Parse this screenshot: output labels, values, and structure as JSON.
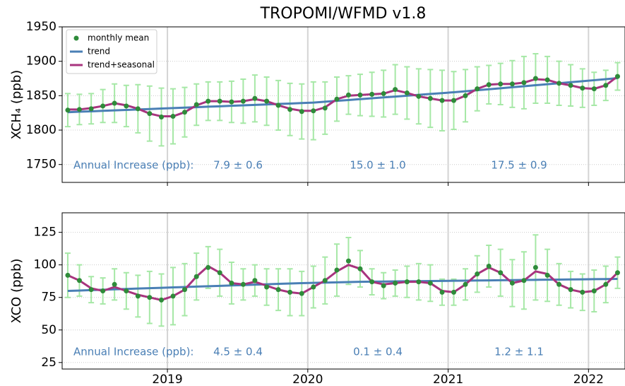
{
  "chart_data": [
    {
      "type": "errorbar-line",
      "title": "TROPOMI/WFMD v1.8",
      "ylabel": "XCH₄ (ppb)",
      "x": [
        2018.29,
        2018.373,
        2018.457,
        2018.54,
        2018.623,
        2018.707,
        2018.79,
        2018.873,
        2018.957,
        2019.04,
        2019.123,
        2019.207,
        2019.29,
        2019.373,
        2019.457,
        2019.54,
        2019.623,
        2019.707,
        2019.79,
        2019.873,
        2019.957,
        2020.04,
        2020.123,
        2020.207,
        2020.29,
        2020.373,
        2020.457,
        2020.54,
        2020.623,
        2020.707,
        2020.79,
        2020.873,
        2020.957,
        2021.04,
        2021.123,
        2021.207,
        2021.29,
        2021.373,
        2021.457,
        2021.54,
        2021.623,
        2021.707,
        2021.79,
        2021.873,
        2021.957,
        2022.04,
        2022.123,
        2022.207
      ],
      "series": [
        {
          "name": "monthly mean",
          "color": "#2e8b3a",
          "error_color": "#a6e8a6",
          "values": [
            1829,
            1830,
            1831,
            1835,
            1839,
            1835,
            1831,
            1824,
            1819,
            1820,
            1826,
            1837,
            1842,
            1842,
            1841,
            1842,
            1846,
            1842,
            1836,
            1830,
            1827,
            1828,
            1832,
            1845,
            1851,
            1851,
            1852,
            1853,
            1859,
            1854,
            1849,
            1846,
            1843,
            1843,
            1850,
            1860,
            1866,
            1867,
            1867,
            1869,
            1875,
            1873,
            1868,
            1865,
            1861,
            1860,
            1865,
            1878
          ],
          "errors": [
            24,
            22,
            22,
            24,
            28,
            30,
            35,
            40,
            42,
            40,
            36,
            30,
            28,
            28,
            30,
            32,
            34,
            35,
            36,
            38,
            40,
            42,
            38,
            32,
            28,
            30,
            32,
            34,
            36,
            38,
            40,
            42,
            44,
            42,
            38,
            32,
            28,
            30,
            34,
            38,
            36,
            34,
            32,
            30,
            28,
            24,
            22,
            20
          ]
        },
        {
          "name": "trend",
          "color": "#4a7fb5",
          "values": [
            1826,
            1826.7,
            1827.3,
            1828,
            1828.6,
            1829.3,
            1830,
            1830.6,
            1831.3,
            1832,
            1832.6,
            1833.3,
            1834,
            1834.6,
            1835.3,
            1836,
            1836.6,
            1837.3,
            1838,
            1838.6,
            1839.3,
            1840,
            1841.2,
            1842.5,
            1843.7,
            1845,
            1846.2,
            1847.5,
            1848.7,
            1850,
            1851.2,
            1852.5,
            1853.7,
            1855,
            1856.4,
            1857.9,
            1859.4,
            1860.8,
            1862.3,
            1863.7,
            1865.2,
            1866.7,
            1868.1,
            1869.6,
            1871,
            1872.5,
            1874,
            1875.5
          ]
        },
        {
          "name": "trend+seasonal",
          "color": "#a8347e",
          "values": [
            1830,
            1830,
            1832,
            1835,
            1839,
            1836,
            1831,
            1824,
            1820,
            1820,
            1826,
            1836,
            1842,
            1842,
            1841,
            1842,
            1845,
            1842,
            1836,
            1831,
            1828,
            1828,
            1833,
            1845,
            1850,
            1851,
            1852,
            1853,
            1858,
            1854,
            1849,
            1846,
            1843,
            1843,
            1850,
            1860,
            1866,
            1867,
            1867,
            1869,
            1874,
            1873,
            1868,
            1865,
            1861,
            1860,
            1865,
            1878
          ]
        }
      ],
      "annotations": [
        "Annual Increase (ppb):",
        "7.9 ± 0.6",
        "15.0 ± 1.0",
        "17.5 ± 0.9"
      ],
      "xlim": [
        2018.25,
        2022.26
      ],
      "xticks": [
        2019,
        2020,
        2021,
        2022
      ],
      "ylim": [
        1724,
        1950
      ],
      "yticks": [
        1750,
        1800,
        1850,
        1900,
        1950
      ],
      "grid": true,
      "legend": "upper left"
    },
    {
      "type": "errorbar-line",
      "ylabel": "XCO (ppb)",
      "x": [
        2018.29,
        2018.373,
        2018.457,
        2018.54,
        2018.623,
        2018.707,
        2018.79,
        2018.873,
        2018.957,
        2019.04,
        2019.123,
        2019.207,
        2019.29,
        2019.373,
        2019.457,
        2019.54,
        2019.623,
        2019.707,
        2019.79,
        2019.873,
        2019.957,
        2020.04,
        2020.123,
        2020.207,
        2020.29,
        2020.373,
        2020.457,
        2020.54,
        2020.623,
        2020.707,
        2020.79,
        2020.873,
        2020.957,
        2021.04,
        2021.123,
        2021.207,
        2021.29,
        2021.373,
        2021.457,
        2021.54,
        2021.623,
        2021.707,
        2021.79,
        2021.873,
        2021.957,
        2022.04,
        2022.123,
        2022.207
      ],
      "series": [
        {
          "color": "#2e8b3a",
          "error_color": "#a6e8a6",
          "values": [
            92,
            88,
            81,
            80,
            85,
            80,
            76,
            75,
            73,
            76,
            81,
            91,
            98,
            94,
            86,
            85,
            88,
            83,
            81,
            79,
            78,
            83,
            88,
            96,
            103,
            97,
            87,
            84,
            86,
            87,
            87,
            86,
            79,
            79,
            85,
            93,
            99,
            94,
            86,
            88,
            98,
            92,
            85,
            81,
            79,
            80,
            85,
            94
          ],
          "errors": [
            17,
            12,
            10,
            10,
            12,
            14,
            16,
            20,
            20,
            22,
            20,
            18,
            16,
            18,
            16,
            12,
            12,
            14,
            16,
            18,
            17,
            16,
            18,
            20,
            18,
            14,
            10,
            10,
            10,
            12,
            14,
            14,
            10,
            10,
            12,
            14,
            16,
            18,
            18,
            22,
            25,
            20,
            16,
            14,
            14,
            16,
            14,
            12
          ]
        },
        {
          "color": "#4a7fb5",
          "values": [
            80,
            80.3,
            80.6,
            80.9,
            81.2,
            81.5,
            81.8,
            82.1,
            82.4,
            82.7,
            83,
            83.3,
            83.6,
            83.9,
            84.2,
            84.5,
            84.8,
            85.1,
            85.4,
            85.7,
            86,
            86.2,
            86.4,
            86.6,
            86.8,
            87,
            87.1,
            87.2,
            87.3,
            87.4,
            87.5,
            87.6,
            87.7,
            87.8,
            87.9,
            88,
            88.1,
            88.2,
            88.3,
            88.4,
            88.5,
            88.6,
            88.7,
            88.8,
            88.9,
            89,
            89.1,
            89.2
          ]
        },
        {
          "color": "#a8347e",
          "values": [
            92,
            88,
            82,
            80,
            83,
            80,
            77,
            75,
            73,
            76,
            81,
            91,
            99,
            94,
            86,
            85,
            87,
            84,
            81,
            79,
            78,
            83,
            88,
            95,
            100,
            97,
            87,
            85,
            86,
            87,
            87,
            86,
            80,
            79,
            85,
            93,
            98,
            94,
            86,
            88,
            95,
            93,
            85,
            81,
            79,
            80,
            85,
            94
          ]
        }
      ],
      "annotations": [
        "Annual Increase (ppb):",
        "4.5 ± 0.4",
        "0.1 ± 0.4",
        "1.2 ± 1.1"
      ],
      "xlim": [
        2018.25,
        2022.26
      ],
      "xticks": [
        2019,
        2020,
        2021,
        2022
      ],
      "ylim": [
        20,
        140
      ],
      "yticks": [
        25,
        50,
        75,
        100,
        125
      ],
      "grid": true
    }
  ]
}
